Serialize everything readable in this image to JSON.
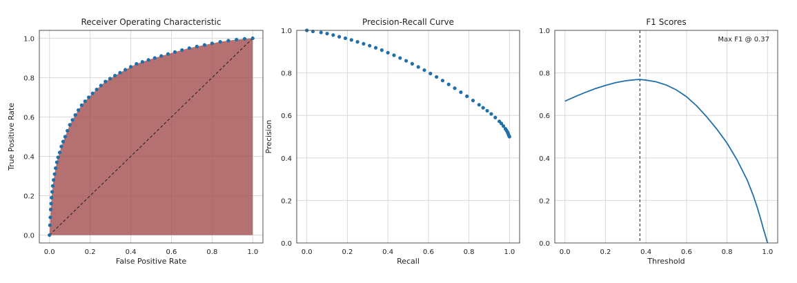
{
  "colors": {
    "plot_bg": "#ffffff",
    "grid": "#d9d9d9",
    "spine": "#4d4d4d",
    "series": "#1f6fa8",
    "area_fill": "#a0494a",
    "diagonal": "#1a1a1a",
    "vline": "#1a1a1a"
  },
  "chart_data": [
    {
      "type": "scatter",
      "title": "Receiver Operating Characteristic",
      "xlabel": "False Positive Rate",
      "ylabel": "True Positive Rate",
      "xlim": [
        -0.05,
        1.05
      ],
      "ylim": [
        -0.04,
        1.04
      ],
      "xticks": [
        "0.0",
        "0.2",
        "0.4",
        "0.6",
        "0.8",
        "1.0"
      ],
      "yticks": [
        "0.0",
        "0.2",
        "0.4",
        "0.6",
        "0.8",
        "1.0"
      ],
      "grid": true,
      "area_under_curve": true,
      "diagonal_reference": true,
      "series": [
        {
          "x": [
            0.0,
            0.002,
            0.004,
            0.006,
            0.008,
            0.01,
            0.013,
            0.016,
            0.02,
            0.025,
            0.03,
            0.036,
            0.042,
            0.05,
            0.058,
            0.067,
            0.077,
            0.088,
            0.1,
            0.113,
            0.127,
            0.142,
            0.158,
            0.175,
            0.193,
            0.212,
            0.232,
            0.253,
            0.275,
            0.298,
            0.322,
            0.347,
            0.373,
            0.4,
            0.428,
            0.457,
            0.487,
            0.518,
            0.55,
            0.583,
            0.617,
            0.652,
            0.688,
            0.725,
            0.763,
            0.8,
            0.84,
            0.88,
            0.92,
            0.96,
            1.0
          ],
          "y": [
            0.0,
            0.05,
            0.09,
            0.13,
            0.16,
            0.19,
            0.22,
            0.25,
            0.28,
            0.31,
            0.34,
            0.37,
            0.395,
            0.42,
            0.45,
            0.475,
            0.5,
            0.53,
            0.56,
            0.585,
            0.61,
            0.635,
            0.66,
            0.68,
            0.7,
            0.72,
            0.74,
            0.76,
            0.78,
            0.795,
            0.81,
            0.825,
            0.84,
            0.855,
            0.87,
            0.88,
            0.89,
            0.9,
            0.91,
            0.92,
            0.93,
            0.94,
            0.95,
            0.958,
            0.966,
            0.974,
            0.982,
            0.988,
            0.993,
            0.997,
            1.0
          ]
        }
      ]
    },
    {
      "type": "scatter",
      "title": "Precision-Recall Curve",
      "xlabel": "Recall",
      "ylabel": "Precision",
      "xlim": [
        -0.05,
        1.05
      ],
      "ylim": [
        0.0,
        1.0
      ],
      "xticks": [
        "0.0",
        "0.2",
        "0.4",
        "0.6",
        "0.8",
        "1.0"
      ],
      "yticks": [
        "0.0",
        "0.2",
        "0.4",
        "0.6",
        "0.8",
        "1.0"
      ],
      "grid": true,
      "series": [
        {
          "x": [
            0.0,
            0.03,
            0.07,
            0.1,
            0.13,
            0.16,
            0.19,
            0.22,
            0.25,
            0.28,
            0.31,
            0.34,
            0.37,
            0.4,
            0.43,
            0.46,
            0.49,
            0.52,
            0.55,
            0.58,
            0.61,
            0.64,
            0.67,
            0.7,
            0.73,
            0.76,
            0.79,
            0.82,
            0.85,
            0.87,
            0.89,
            0.91,
            0.93,
            0.95,
            0.96,
            0.97,
            0.98,
            0.985,
            0.99,
            0.993,
            0.996,
            0.998,
            1.0
          ],
          "y": [
            1.0,
            0.995,
            0.99,
            0.985,
            0.978,
            0.97,
            0.963,
            0.955,
            0.946,
            0.937,
            0.928,
            0.918,
            0.907,
            0.895,
            0.883,
            0.87,
            0.857,
            0.843,
            0.828,
            0.813,
            0.797,
            0.781,
            0.764,
            0.746,
            0.728,
            0.709,
            0.69,
            0.67,
            0.65,
            0.636,
            0.622,
            0.607,
            0.59,
            0.572,
            0.562,
            0.55,
            0.537,
            0.53,
            0.522,
            0.515,
            0.508,
            0.503,
            0.5
          ]
        }
      ]
    },
    {
      "type": "line",
      "title": "F1 Scores",
      "xlabel": "Threshold",
      "ylabel": "",
      "xlim": [
        -0.05,
        1.05
      ],
      "ylim": [
        0.0,
        1.0
      ],
      "xticks": [
        "0.0",
        "0.2",
        "0.4",
        "0.6",
        "0.8",
        "1.0"
      ],
      "yticks": [
        "0.0",
        "0.2",
        "0.4",
        "0.6",
        "0.8",
        "1.0"
      ],
      "grid": true,
      "annotation": "Max F1 @ 0.37",
      "vline_x": 0.37,
      "series": [
        {
          "x": [
            0.0,
            0.05,
            0.1,
            0.15,
            0.2,
            0.25,
            0.3,
            0.35,
            0.37,
            0.4,
            0.45,
            0.5,
            0.55,
            0.6,
            0.65,
            0.7,
            0.75,
            0.8,
            0.85,
            0.9,
            0.93,
            0.95,
            0.97,
            0.98,
            0.99,
            1.0
          ],
          "y": [
            0.667,
            0.688,
            0.708,
            0.726,
            0.741,
            0.754,
            0.763,
            0.768,
            0.769,
            0.766,
            0.758,
            0.743,
            0.72,
            0.688,
            0.645,
            0.593,
            0.535,
            0.47,
            0.39,
            0.295,
            0.222,
            0.165,
            0.1,
            0.065,
            0.033,
            0.0
          ]
        }
      ]
    }
  ]
}
